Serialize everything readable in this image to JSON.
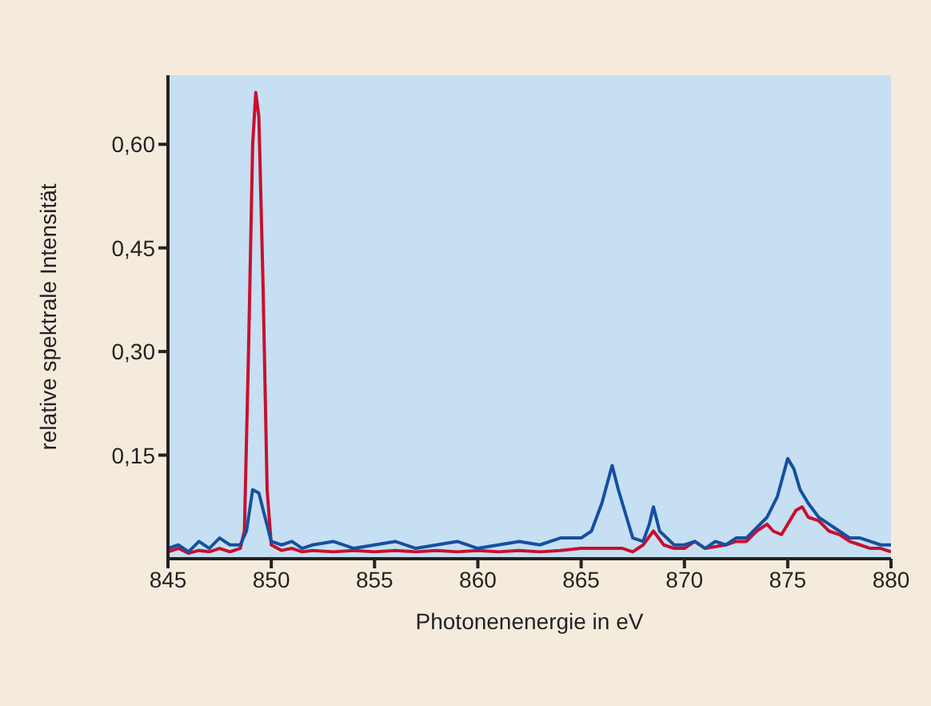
{
  "chart_data": {
    "type": "line",
    "xlabel": "Photonenenergie in eV",
    "ylabel": "relative spektrale Intensität",
    "xlim": [
      845,
      880
    ],
    "xticks": [
      845,
      850,
      855,
      860,
      865,
      870,
      875,
      880
    ],
    "ylim": [
      0,
      0.7
    ],
    "yticks": [
      {
        "value": 0.15,
        "label": "0,15"
      },
      {
        "value": 0.3,
        "label": "0,30"
      },
      {
        "value": 0.45,
        "label": "0,45"
      },
      {
        "value": 0.6,
        "label": "0,60"
      }
    ],
    "grid": false,
    "legend": false,
    "marker": "none",
    "line_style": "solid",
    "series": [
      {
        "color": "#c8102e",
        "x": [
          845,
          845.5,
          846,
          846.5,
          847,
          847.5,
          848,
          848.5,
          848.7,
          848.9,
          849.1,
          849.25,
          849.4,
          849.6,
          849.8,
          850,
          850.5,
          851,
          851.5,
          852,
          853,
          854,
          855,
          856,
          857,
          858,
          859,
          860,
          861,
          862,
          863,
          864,
          865,
          866,
          867,
          867.5,
          868,
          868.5,
          869,
          869.5,
          870,
          870.5,
          871,
          872,
          872.5,
          873,
          873.5,
          874,
          874.3,
          874.7,
          875,
          875.4,
          875.7,
          876,
          876.5,
          877,
          877.5,
          878,
          878.5,
          879,
          879.5,
          880
        ],
        "values": [
          0.01,
          0.015,
          0.008,
          0.012,
          0.01,
          0.015,
          0.01,
          0.015,
          0.04,
          0.3,
          0.6,
          0.675,
          0.64,
          0.4,
          0.1,
          0.02,
          0.012,
          0.015,
          0.01,
          0.012,
          0.01,
          0.012,
          0.01,
          0.012,
          0.01,
          0.012,
          0.01,
          0.012,
          0.01,
          0.012,
          0.01,
          0.012,
          0.015,
          0.015,
          0.015,
          0.01,
          0.02,
          0.04,
          0.02,
          0.015,
          0.015,
          0.025,
          0.015,
          0.02,
          0.025,
          0.025,
          0.04,
          0.05,
          0.04,
          0.035,
          0.05,
          0.07,
          0.075,
          0.06,
          0.055,
          0.04,
          0.035,
          0.025,
          0.02,
          0.015,
          0.015,
          0.01
        ]
      },
      {
        "color": "#1550a0",
        "x": [
          845,
          845.5,
          846,
          846.5,
          847,
          847.5,
          848,
          848.5,
          848.8,
          849.1,
          849.4,
          849.7,
          850,
          850.5,
          851,
          851.5,
          852,
          853,
          854,
          855,
          856,
          857,
          858,
          859,
          860,
          861,
          862,
          863,
          864,
          865,
          865.5,
          866,
          866.5,
          866.8,
          867.2,
          867.5,
          868,
          868.3,
          868.5,
          868.8,
          869.5,
          870,
          870.5,
          871,
          871.5,
          872,
          872.5,
          873,
          873.5,
          874,
          874.5,
          875,
          875.3,
          875.6,
          876,
          876.5,
          877,
          877.5,
          878,
          878.5,
          879,
          879.5,
          880
        ],
        "values": [
          0.015,
          0.02,
          0.01,
          0.025,
          0.015,
          0.03,
          0.02,
          0.02,
          0.04,
          0.1,
          0.095,
          0.06,
          0.025,
          0.02,
          0.025,
          0.015,
          0.02,
          0.025,
          0.015,
          0.02,
          0.025,
          0.015,
          0.02,
          0.025,
          0.015,
          0.02,
          0.025,
          0.02,
          0.03,
          0.03,
          0.04,
          0.08,
          0.135,
          0.1,
          0.06,
          0.03,
          0.025,
          0.05,
          0.075,
          0.04,
          0.02,
          0.02,
          0.025,
          0.015,
          0.025,
          0.02,
          0.03,
          0.03,
          0.045,
          0.06,
          0.09,
          0.145,
          0.13,
          0.1,
          0.08,
          0.06,
          0.05,
          0.04,
          0.03,
          0.03,
          0.025,
          0.02,
          0.02
        ]
      }
    ]
  }
}
